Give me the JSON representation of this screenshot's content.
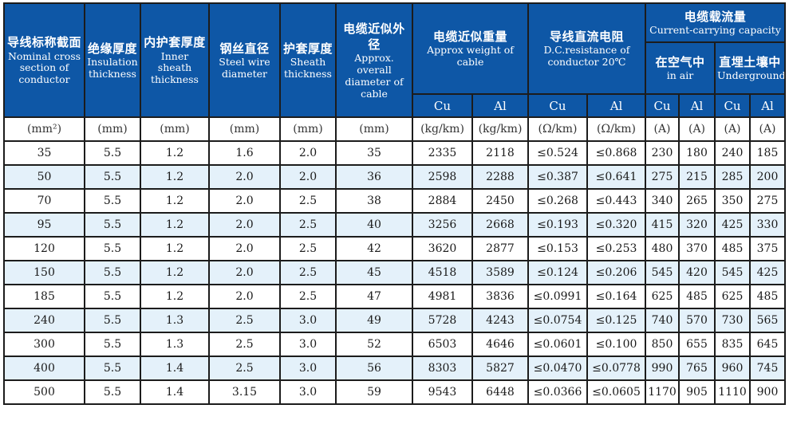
{
  "table": {
    "simple_columns": [
      {
        "zh": "导线标称截面",
        "en": "Nominal cross section of conductor",
        "unit": "(mm²)"
      },
      {
        "zh": "绝缘厚度",
        "en": "Insulation thickness",
        "unit": "(mm)"
      },
      {
        "zh": "内护套厚度",
        "en": "Inner sheath thickness",
        "unit": "(mm)"
      },
      {
        "zh": "钢丝直径",
        "en": "Steel wire diameter",
        "unit": "(mm)"
      },
      {
        "zh": "护套厚度",
        "en": "Sheath thickness",
        "unit": "(mm)"
      },
      {
        "zh": "电缆近似外径",
        "en": "Approx. overall diameter of cable",
        "unit": "(mm)"
      }
    ],
    "weight_group": {
      "zh": "电缆近似重量",
      "en": "Approx weight of cable",
      "subs": [
        "Cu",
        "Al"
      ],
      "units": [
        "(kg/km)",
        "(kg/km)"
      ]
    },
    "resistance_group": {
      "zh": "导线直流电阻",
      "en": "D.C.resistance of conductor 20℃",
      "subs": [
        "Cu",
        "Al"
      ],
      "units": [
        "(Ω/km)",
        "(Ω/km)"
      ]
    },
    "capacity_group": {
      "zh": "电缆载流量",
      "en": "Current-carrying capacity",
      "air": {
        "zh": "在空气中",
        "en": "in air"
      },
      "underground": {
        "zh": "直埋土壤中",
        "en": "Underground"
      },
      "subs": [
        "Cu",
        "Al",
        "Cu",
        "Al"
      ],
      "units": [
        "(A)",
        "(A)",
        "(A)",
        "(A)"
      ]
    },
    "rows": [
      [
        "35",
        "5.5",
        "1.2",
        "1.6",
        "2.0",
        "35",
        "2335",
        "2118",
        "≤0.524",
        "≤0.868",
        "230",
        "180",
        "240",
        "185"
      ],
      [
        "50",
        "5.5",
        "1.2",
        "2.0",
        "2.0",
        "36",
        "2598",
        "2288",
        "≤0.387",
        "≤0.641",
        "275",
        "215",
        "285",
        "200"
      ],
      [
        "70",
        "5.5",
        "1.2",
        "2.0",
        "2.5",
        "38",
        "2884",
        "2450",
        "≤0.268",
        "≤0.443",
        "340",
        "265",
        "350",
        "275"
      ],
      [
        "95",
        "5.5",
        "1.2",
        "2.0",
        "2.5",
        "40",
        "3256",
        "2668",
        "≤0.193",
        "≤0.320",
        "415",
        "320",
        "425",
        "330"
      ],
      [
        "120",
        "5.5",
        "1.2",
        "2.0",
        "2.5",
        "42",
        "3620",
        "2877",
        "≤0.153",
        "≤0.253",
        "480",
        "370",
        "485",
        "375"
      ],
      [
        "150",
        "5.5",
        "1.2",
        "2.0",
        "2.5",
        "45",
        "4518",
        "3589",
        "≤0.124",
        "≤0.206",
        "545",
        "420",
        "545",
        "425"
      ],
      [
        "185",
        "5.5",
        "1.2",
        "2.0",
        "2.5",
        "47",
        "4981",
        "3836",
        "≤0.0991",
        "≤0.164",
        "625",
        "485",
        "625",
        "485"
      ],
      [
        "240",
        "5.5",
        "1.3",
        "2.5",
        "3.0",
        "49",
        "5728",
        "4243",
        "≤0.0754",
        "≤0.125",
        "740",
        "570",
        "730",
        "565"
      ],
      [
        "300",
        "5.5",
        "1.3",
        "2.5",
        "3.0",
        "52",
        "6503",
        "4646",
        "≤0.0601",
        "≤0.100",
        "850",
        "655",
        "835",
        "645"
      ],
      [
        "400",
        "5.5",
        "1.4",
        "2.5",
        "3.0",
        "56",
        "8303",
        "5827",
        "≤0.0470",
        "≤0.0778",
        "990",
        "765",
        "960",
        "745"
      ],
      [
        "500",
        "5.5",
        "1.4",
        "3.15",
        "3.0",
        "59",
        "9543",
        "6448",
        "≤0.0366",
        "≤0.0605",
        "1170",
        "905",
        "1110",
        "900"
      ]
    ]
  },
  "colors": {
    "header_blue": "#0e57a6",
    "row_stripe": "#e4f1fa",
    "grid_border": "#1c1c1c"
  }
}
